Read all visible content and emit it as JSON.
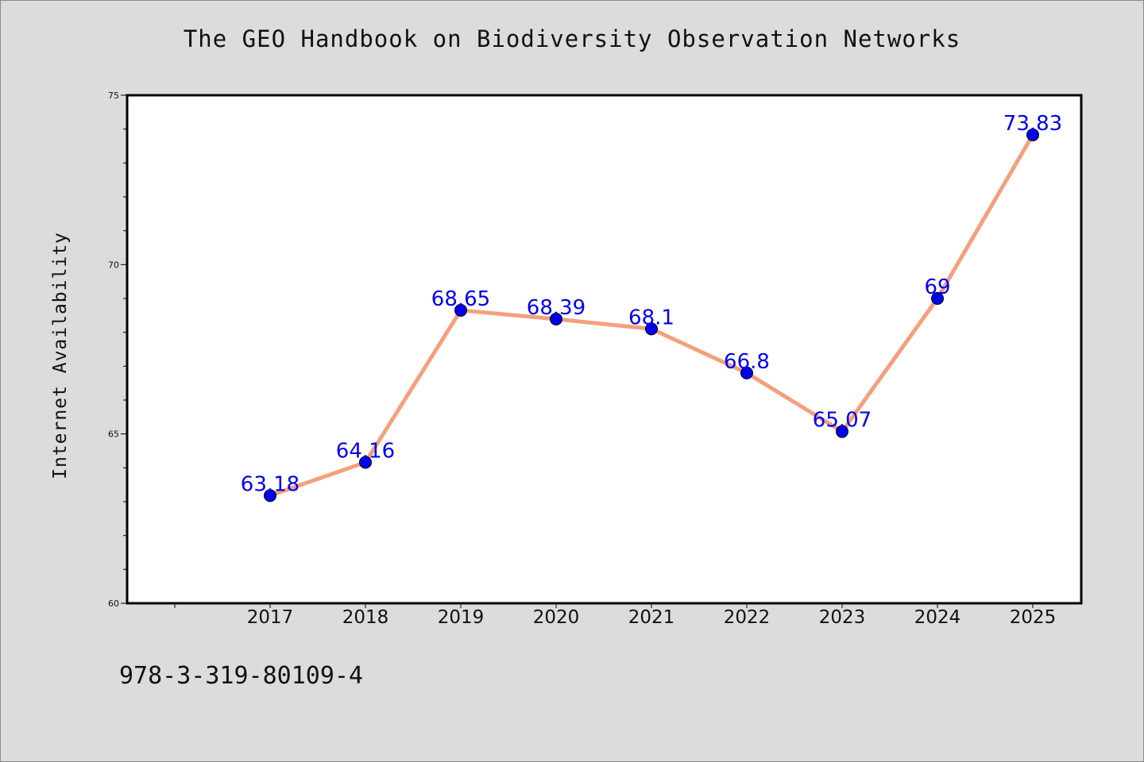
{
  "chart_data": {
    "type": "line",
    "title": "The GEO Handbook on Biodiversity Observation Networks",
    "ylabel": "Internet Availability",
    "xlabel": "",
    "categories": [
      "2017",
      "2018",
      "2019",
      "2020",
      "2021",
      "2022",
      "2023",
      "2024",
      "2025"
    ],
    "values": [
      63.18,
      64.16,
      68.65,
      68.39,
      68.1,
      66.8,
      65.07,
      69,
      73.83
    ],
    "data_labels": [
      "63.18",
      "64.16",
      "68.65",
      "68.39",
      "68.1",
      "66.8",
      "65.07",
      "69",
      "73.83"
    ],
    "ylim": [
      60,
      75
    ],
    "yticks": [
      "60",
      "65",
      "70",
      "75"
    ],
    "grid": false,
    "line_color": "#f4a07c",
    "marker_color": "#0000ee"
  },
  "footer": {
    "code": "978-3-319-80109-4"
  }
}
